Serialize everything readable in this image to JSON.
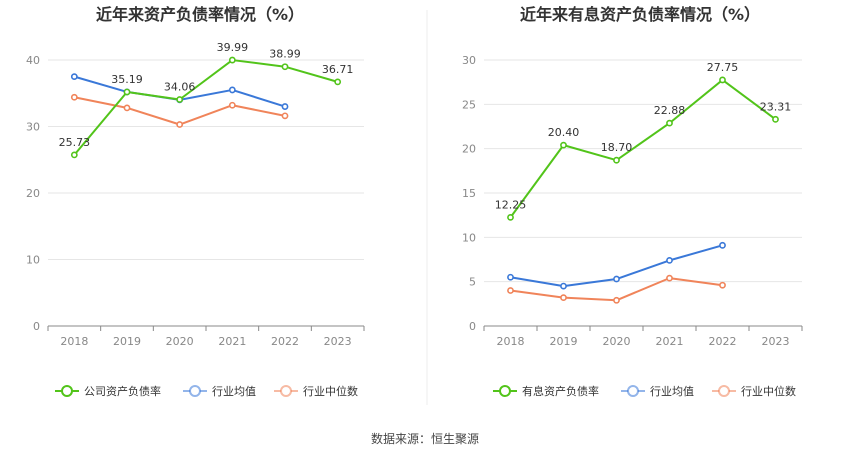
{
  "source": "数据来源：恒生聚源",
  "chart_data": [
    {
      "type": "line",
      "title": "近年来资产负债率情况（%）",
      "categories": [
        "2018",
        "2019",
        "2020",
        "2021",
        "2022",
        "2023"
      ],
      "ylim": [
        0,
        40
      ],
      "yticks": [
        "0",
        "10",
        "20",
        "30",
        "40"
      ],
      "grid": true,
      "legend_position": "bottom",
      "series": [
        {
          "name": "公司资产负债率",
          "color": "#52c41a",
          "values": [
            25.73,
            35.19,
            34.06,
            39.99,
            38.99,
            36.71
          ],
          "labels": [
            "25.73",
            "35.19",
            "34.06",
            "39.99",
            "38.99",
            "36.71"
          ]
        },
        {
          "name": "行业均值",
          "color": "#3a78d8",
          "values": [
            37.5,
            35.2,
            34.0,
            35.5,
            33.0,
            null
          ]
        },
        {
          "name": "行业中位数",
          "color": "#f0845a",
          "values": [
            34.4,
            32.8,
            30.3,
            33.2,
            31.6,
            null
          ]
        }
      ]
    },
    {
      "type": "line",
      "title": "近年来有息资产负债率情况（%）",
      "categories": [
        "2018",
        "2019",
        "2020",
        "2021",
        "2022",
        "2023"
      ],
      "ylim": [
        0,
        30
      ],
      "yticks": [
        "0",
        "5",
        "10",
        "15",
        "20",
        "25",
        "30"
      ],
      "grid": true,
      "legend_position": "bottom",
      "series": [
        {
          "name": "有息资产负债率",
          "color": "#52c41a",
          "values": [
            12.25,
            20.4,
            18.7,
            22.88,
            27.75,
            23.31
          ],
          "labels": [
            "12.25",
            "20.40",
            "18.70",
            "22.88",
            "27.75",
            "23.31"
          ]
        },
        {
          "name": "行业均值",
          "color": "#3a78d8",
          "values": [
            5.5,
            4.5,
            5.3,
            7.4,
            9.1,
            null
          ]
        },
        {
          "name": "行业中位数",
          "color": "#f0845a",
          "values": [
            4.0,
            3.2,
            2.9,
            5.4,
            4.6,
            null
          ]
        }
      ]
    }
  ]
}
